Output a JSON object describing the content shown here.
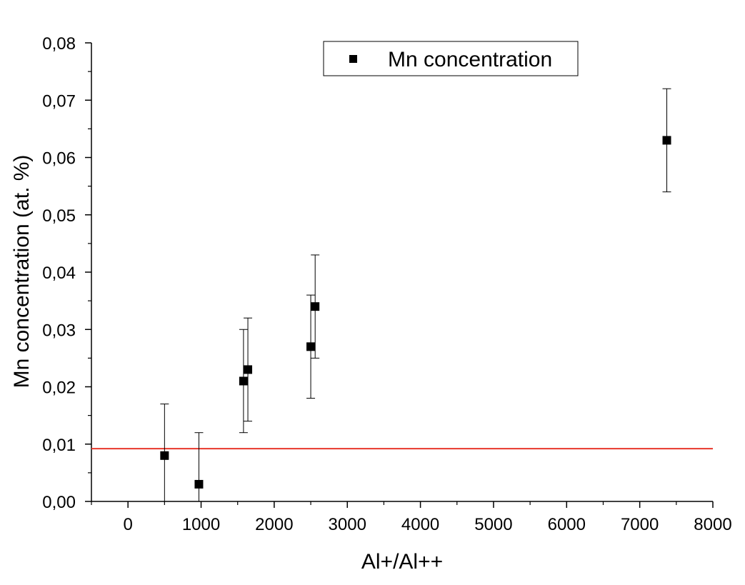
{
  "chart_data": {
    "type": "scatter",
    "title": "",
    "xlabel": "Al+/Al++",
    "ylabel": "Mn concentration (at. %)",
    "xlim": [
      -500,
      8000
    ],
    "ylim": [
      0,
      0.08
    ],
    "x_ticks": [
      0,
      1000,
      2000,
      3000,
      4000,
      5000,
      6000,
      7000,
      8000
    ],
    "x_tick_labels": [
      "0",
      "1000",
      "2000",
      "3000",
      "4000",
      "5000",
      "6000",
      "7000",
      "8000"
    ],
    "y_ticks": [
      0,
      0.01,
      0.02,
      0.03,
      0.04,
      0.05,
      0.06,
      0.07,
      0.08
    ],
    "y_tick_labels": [
      "0,00",
      "0,01",
      "0,02",
      "0,03",
      "0,04",
      "0,05",
      "0,06",
      "0,07",
      "0,08"
    ],
    "grid": false,
    "legend_position": "top-right",
    "series": [
      {
        "name": "Mn concentration",
        "marker": "square",
        "color": "#000000",
        "points": [
          {
            "x": 500,
            "y": 0.008,
            "y_low": 0.0,
            "y_high": 0.017
          },
          {
            "x": 970,
            "y": 0.003,
            "y_low": 0.0,
            "y_high": 0.012
          },
          {
            "x": 1580,
            "y": 0.021,
            "y_low": 0.012,
            "y_high": 0.03
          },
          {
            "x": 1640,
            "y": 0.023,
            "y_low": 0.014,
            "y_high": 0.032
          },
          {
            "x": 2500,
            "y": 0.027,
            "y_low": 0.018,
            "y_high": 0.036
          },
          {
            "x": 2560,
            "y": 0.034,
            "y_low": 0.025,
            "y_high": 0.043
          },
          {
            "x": 7370,
            "y": 0.063,
            "y_low": 0.054,
            "y_high": 0.072
          }
        ]
      }
    ],
    "reference_line": {
      "y": 0.0092,
      "color": "#e8372b"
    }
  }
}
